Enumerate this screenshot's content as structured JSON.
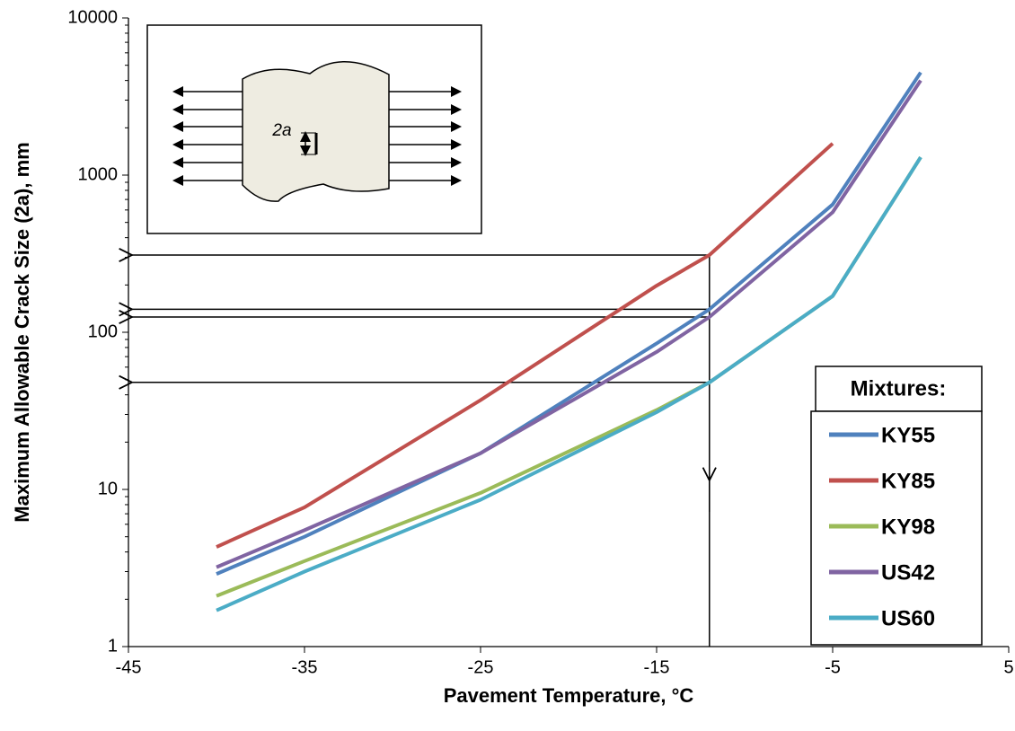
{
  "chart_data": {
    "type": "line",
    "x_label": "Pavement Temperature, °C",
    "y_label": "Maximum Allowable Crack Size (2a), mm",
    "legend_title": "Mixtures:",
    "legend_position": "lower right",
    "log_y": true,
    "x": [
      -40,
      -35,
      -25,
      -15,
      -12,
      -5,
      0
    ],
    "series": [
      {
        "name": "KY55",
        "color": "#4f81bd",
        "values": [
          2.9,
          5.0,
          17,
          85,
          140,
          650,
          4500
        ]
      },
      {
        "name": "KY85",
        "color": "#c0504d",
        "values": [
          4.3,
          7.7,
          37,
          198,
          310,
          1590,
          null
        ]
      },
      {
        "name": "KY98",
        "color": "#9bbb59",
        "values": [
          2.1,
          3.5,
          9.5,
          32,
          48,
          170,
          1300
        ]
      },
      {
        "name": "US42",
        "color": "#8064a2",
        "values": [
          3.2,
          5.5,
          17,
          75,
          125,
          580,
          4000
        ]
      },
      {
        "name": "US60",
        "color": "#4bacc6",
        "values": [
          1.7,
          3.0,
          8.6,
          31,
          48,
          170,
          1300
        ]
      }
    ],
    "reference_lines": {
      "x": -12,
      "y": [
        310,
        140,
        125,
        48
      ]
    },
    "inset_label": "2a",
    "xlim": [
      -45,
      5
    ],
    "xticks": [
      -45,
      -35,
      -25,
      -15,
      -5,
      5
    ],
    "ylim": [
      1,
      10000
    ],
    "yticks": [
      1,
      10,
      100,
      1000,
      10000
    ]
  }
}
